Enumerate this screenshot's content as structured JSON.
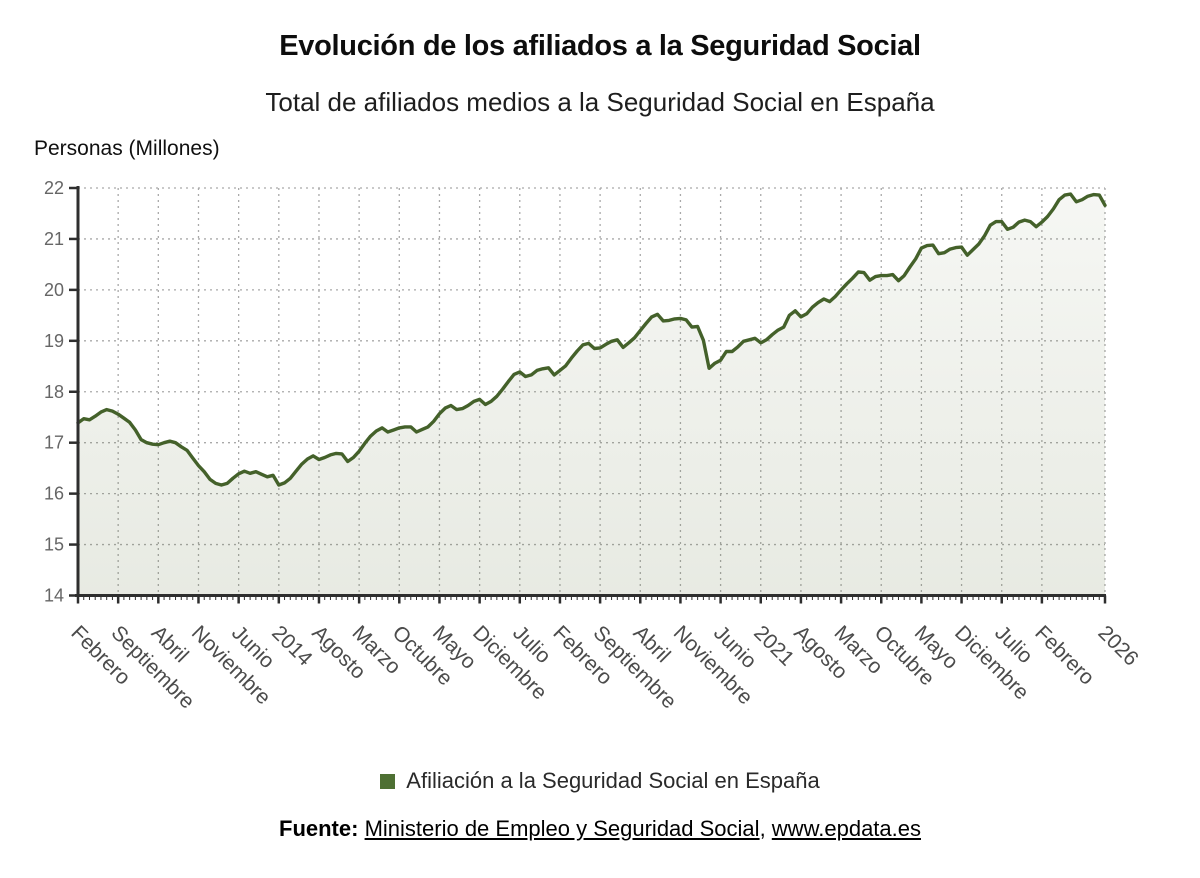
{
  "header": {
    "title": "Evolución de los afiliados a la Seguridad Social",
    "subtitle": "Total de afiliados medios a la Seguridad Social en España"
  },
  "y_axis_label": "Personas (Millones)",
  "legend": {
    "label": "Afiliación a la Seguridad Social en España",
    "color": "#4e7033"
  },
  "footer": {
    "prefix": "Fuente:",
    "source": "Ministerio de Empleo y Seguridad Social",
    "separator": ", ",
    "site": "www.epdata.es"
  },
  "colors": {
    "line": "#44612a",
    "legend_swatch": "#4e7033",
    "grid": "#a9a9a9",
    "axis": "#2e2e2e",
    "y_tick_text": "#666666",
    "x_tick_text": "#4b4b4b"
  },
  "chart_data": {
    "type": "area",
    "title": "Evolución de los afiliados a la Seguridad Social",
    "subtitle": "Total de afiliados medios a la Seguridad Social en España",
    "xlabel": "",
    "ylabel": "Personas (Millones)",
    "ylim": [
      14,
      22
    ],
    "yticks": [
      14,
      15,
      16,
      17,
      18,
      19,
      20,
      21,
      22
    ],
    "grid": true,
    "legend_position": "bottom",
    "line_color": "#44612a",
    "area_fill": {
      "top": "rgba(98,116,64,0.06)",
      "bottom": "rgba(98,116,64,0.15)"
    },
    "x_tick_labels": [
      "Febrero",
      "Septiembre",
      "Abril",
      "Noviembre",
      "Junio",
      "2014",
      "Agosto",
      "Marzo",
      "Octubre",
      "Mayo",
      "Diciembre",
      "Julio",
      "Febrero",
      "Septiembre",
      "Abril",
      "Noviembre",
      "Junio",
      "2021",
      "Agosto",
      "Marzo",
      "Octubre",
      "Mayo",
      "Diciembre",
      "Julio",
      "Febrero",
      "2026"
    ],
    "x_tick_month_offsets": [
      0,
      7,
      14,
      21,
      28,
      35,
      42,
      49,
      56,
      63,
      70,
      77,
      84,
      91,
      98,
      105,
      112,
      119,
      126,
      133,
      140,
      147,
      154,
      161,
      168,
      179
    ],
    "x_start_label": "Febrero",
    "x_end_label": "2026",
    "x_frequency": "monthly",
    "series": [
      {
        "name": "Afiliación a la Seguridad Social en España",
        "color": "#44612a",
        "values": [
          17.39,
          17.47,
          17.45,
          17.52,
          17.6,
          17.65,
          17.62,
          17.56,
          17.48,
          17.4,
          17.25,
          17.06,
          17.0,
          16.97,
          16.96,
          17.0,
          17.03,
          17.0,
          16.92,
          16.85,
          16.7,
          16.55,
          16.43,
          16.28,
          16.2,
          16.17,
          16.2,
          16.3,
          16.39,
          16.44,
          16.4,
          16.43,
          16.38,
          16.33,
          16.36,
          16.17,
          16.21,
          16.3,
          16.44,
          16.58,
          16.68,
          16.74,
          16.67,
          16.71,
          16.76,
          16.79,
          16.78,
          16.63,
          16.71,
          16.83,
          16.99,
          17.13,
          17.23,
          17.29,
          17.21,
          17.25,
          17.29,
          17.31,
          17.31,
          17.21,
          17.26,
          17.31,
          17.42,
          17.57,
          17.68,
          17.73,
          17.65,
          17.67,
          17.73,
          17.81,
          17.85,
          17.75,
          17.81,
          17.91,
          18.05,
          18.2,
          18.34,
          18.39,
          18.3,
          18.33,
          18.42,
          18.45,
          18.47,
          18.33,
          18.42,
          18.51,
          18.66,
          18.8,
          18.92,
          18.95,
          18.85,
          18.86,
          18.93,
          18.99,
          19.02,
          18.87,
          18.96,
          19.06,
          19.2,
          19.34,
          19.47,
          19.52,
          19.39,
          19.4,
          19.43,
          19.44,
          19.41,
          19.27,
          19.28,
          19.01,
          18.46,
          18.56,
          18.62,
          18.79,
          18.79,
          18.88,
          18.99,
          19.02,
          19.05,
          18.96,
          19.02,
          19.12,
          19.21,
          19.27,
          19.5,
          19.59,
          19.47,
          19.53,
          19.66,
          19.75,
          19.82,
          19.77,
          19.87,
          20.0,
          20.12,
          20.23,
          20.35,
          20.34,
          20.19,
          20.26,
          20.28,
          20.28,
          20.3,
          20.18,
          20.28,
          20.45,
          20.61,
          20.82,
          20.87,
          20.88,
          20.71,
          20.73,
          20.8,
          20.83,
          20.84,
          20.68,
          20.79,
          20.9,
          21.06,
          21.27,
          21.34,
          21.34,
          21.19,
          21.23,
          21.33,
          21.37,
          21.34,
          21.24,
          21.33,
          21.44,
          21.59,
          21.77,
          21.86,
          21.88,
          21.73,
          21.77,
          21.84,
          21.87,
          21.86,
          21.66
        ]
      }
    ]
  }
}
